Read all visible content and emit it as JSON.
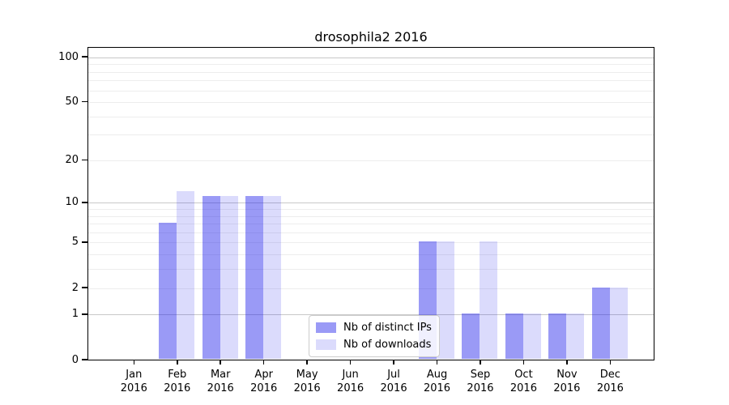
{
  "title": "drosophila2 2016",
  "chart_data": {
    "type": "bar",
    "title": "drosophila2 2016",
    "categories": [
      "Jan",
      "Feb",
      "Mar",
      "Apr",
      "May",
      "Jun",
      "Jul",
      "Aug",
      "Sep",
      "Oct",
      "Nov",
      "Dec"
    ],
    "category_year": "2016",
    "series": [
      {
        "name": "Nb of distinct IPs",
        "color": "rgba(30,30,235,0.45)",
        "values": [
          0,
          7,
          11,
          11,
          0,
          0,
          0,
          5,
          1,
          1,
          1,
          2
        ]
      },
      {
        "name": "Nb of downloads",
        "color": "rgba(30,30,235,0.16)",
        "values": [
          0,
          12,
          11,
          11,
          0,
          0,
          0,
          5,
          5,
          1,
          1,
          2
        ]
      }
    ],
    "yscale": "log10(1+value)",
    "ytick_values": [
      0,
      1,
      2,
      5,
      10,
      20,
      50,
      100
    ],
    "ytick_labels": [
      "0",
      "1",
      "2",
      "5",
      "10",
      "20",
      "50",
      "100"
    ],
    "ylim": [
      0,
      116
    ],
    "grid": {
      "major_values": [
        1,
        10,
        100
      ],
      "minor_values": [
        2,
        3,
        4,
        5,
        6,
        7,
        8,
        9,
        20,
        30,
        40,
        50,
        60,
        70,
        80,
        90
      ],
      "major_color": "#c8c8c8",
      "minor_color": "#ededed"
    },
    "legend": {
      "position": "lower center-left inside plot",
      "entries": [
        "Nb of distinct IPs",
        "Nb of downloads"
      ]
    },
    "axis_color": "#000000",
    "background_color": "#ffffff"
  }
}
